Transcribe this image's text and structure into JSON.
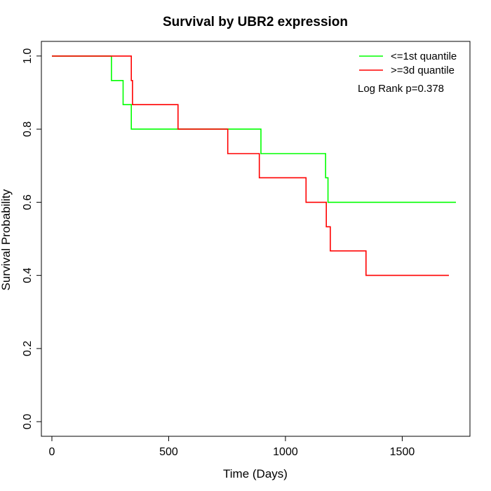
{
  "chart_data": {
    "type": "line",
    "title": "Survival by UBR2 expression",
    "xlabel": "Time (Days)",
    "ylabel": "Survival Probability",
    "xlim": [
      -45,
      1790
    ],
    "ylim": [
      -0.04,
      1.04
    ],
    "x_ticks": [
      0,
      500,
      1000,
      1500
    ],
    "y_ticks": [
      0.0,
      0.2,
      0.4,
      0.6,
      0.8,
      1.0
    ],
    "x_tick_labels": [
      "0",
      "500",
      "1000",
      "1500"
    ],
    "y_tick_labels": [
      "0.0",
      "0.2",
      "0.4",
      "0.6",
      "0.8",
      "1.0"
    ],
    "grid": false,
    "legend_position": "top-right",
    "annotation": "Log Rank p=0.378",
    "series": [
      {
        "name": "<=1st quantile",
        "color": "#00ff00",
        "step": true,
        "points": [
          [
            0,
            1.0
          ],
          [
            255,
            1.0
          ],
          [
            255,
            0.933
          ],
          [
            305,
            0.933
          ],
          [
            305,
            0.867
          ],
          [
            340,
            0.867
          ],
          [
            340,
            0.8
          ],
          [
            895,
            0.8
          ],
          [
            895,
            0.733
          ],
          [
            1172,
            0.733
          ],
          [
            1172,
            0.667
          ],
          [
            1182,
            0.667
          ],
          [
            1182,
            0.6
          ],
          [
            1730,
            0.6
          ]
        ]
      },
      {
        "name": ">=3d quantile",
        "color": "#ff0000",
        "step": true,
        "points": [
          [
            0,
            1.0
          ],
          [
            340,
            1.0
          ],
          [
            340,
            0.933
          ],
          [
            345,
            0.933
          ],
          [
            345,
            0.867
          ],
          [
            540,
            0.867
          ],
          [
            540,
            0.8
          ],
          [
            753,
            0.8
          ],
          [
            753,
            0.733
          ],
          [
            888,
            0.733
          ],
          [
            888,
            0.667
          ],
          [
            1088,
            0.667
          ],
          [
            1088,
            0.6
          ],
          [
            1175,
            0.6
          ],
          [
            1175,
            0.533
          ],
          [
            1192,
            0.533
          ],
          [
            1192,
            0.467
          ],
          [
            1345,
            0.467
          ],
          [
            1345,
            0.4
          ],
          [
            1700,
            0.4
          ]
        ]
      }
    ]
  }
}
